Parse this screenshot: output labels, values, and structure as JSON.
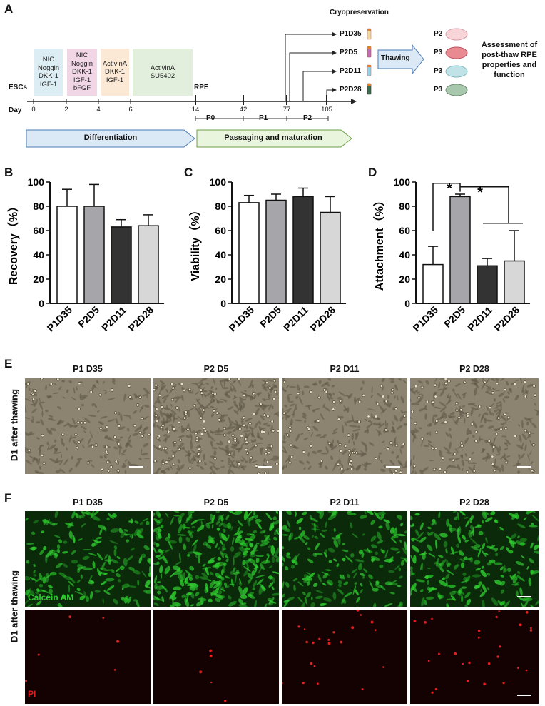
{
  "panel_labels": {
    "a": "A",
    "b": "B",
    "c": "C",
    "d": "D",
    "e": "E",
    "f": "F"
  },
  "schematic": {
    "escs": "ESCs",
    "rpe": "RPE",
    "day": "Day",
    "days": [
      "0",
      "2",
      "4",
      "6",
      "14",
      "42",
      "77",
      "105"
    ],
    "stages": [
      {
        "lines": [
          "NIC",
          "Noggin",
          "DKK-1",
          "IGF-1"
        ],
        "color": "#dcedf3"
      },
      {
        "lines": [
          "NIC",
          "Noggin",
          "DKK-1",
          "IGF-1",
          "bFGF"
        ],
        "color": "#f1d7e6"
      },
      {
        "lines": [
          "ActivinA",
          "DKK-1",
          "IGF-1"
        ],
        "color": "#fbe8d5"
      },
      {
        "lines": [
          "ActivinA",
          "SU5402"
        ],
        "color": "#e2efdc"
      }
    ],
    "passages": [
      "P0",
      "P1",
      "P2"
    ],
    "differentiation": "Differentiation",
    "passaging": "Passaging and maturation",
    "cryopreservation": "Cryopreservation",
    "cryo_points": [
      "P1D35",
      "P2D5",
      "P2D11",
      "P2D28"
    ],
    "thawing": "Thawing",
    "post_thaw_passages": [
      "P2",
      "P3",
      "P3",
      "P3"
    ],
    "assessment": [
      "Assessment of",
      "post-thaw  RPE",
      "properties and",
      "function"
    ]
  },
  "chart_data": [
    {
      "type": "bar",
      "categories": [
        "P1D35",
        "P2D5",
        "P2D11",
        "P2D28"
      ],
      "values": [
        80,
        80,
        63,
        64
      ],
      "errors": [
        14,
        18,
        6,
        9
      ],
      "ylabel": "Recovery（%）",
      "ylim": [
        0,
        100
      ],
      "yticks": [
        "0",
        "20",
        "40",
        "60",
        "80",
        "100"
      ],
      "colors": [
        "#ffffff",
        "#a6a6aa",
        "#333333",
        "#d7d7d7"
      ]
    },
    {
      "type": "bar",
      "categories": [
        "P1D35",
        "P2D5",
        "P2D11",
        "P2D28"
      ],
      "values": [
        83,
        85,
        88,
        75
      ],
      "errors": [
        6,
        5,
        7,
        13
      ],
      "ylabel": "Viability（%）",
      "ylim": [
        0,
        100
      ],
      "yticks": [
        "0",
        "20",
        "40",
        "60",
        "80",
        "100"
      ],
      "colors": [
        "#ffffff",
        "#a6a6aa",
        "#333333",
        "#d7d7d7"
      ]
    },
    {
      "type": "bar",
      "categories": [
        "P1D35",
        "P2D5",
        "P2D11",
        "P2D28"
      ],
      "values": [
        32,
        88,
        31,
        35
      ],
      "errors": [
        15,
        2,
        6,
        25
      ],
      "ylabel": "Attachment（%）",
      "ylim": [
        0,
        100
      ],
      "yticks": [
        "0",
        "20",
        "40",
        "60",
        "80",
        "100"
      ],
      "colors": [
        "#ffffff",
        "#a6a6aa",
        "#333333",
        "#d7d7d7"
      ],
      "significance": [
        "*",
        "*"
      ]
    }
  ],
  "panel_e": {
    "row_label": "D1 after thawing",
    "titles": [
      "P1 D35",
      "P2 D5",
      "P2 D11",
      "P2 D28"
    ],
    "density": [
      0.35,
      0.95,
      0.45,
      0.55
    ]
  },
  "panel_f": {
    "row_label": "D1 after thawing",
    "titles": [
      "P1 D35",
      "P2 D5",
      "P2 D11",
      "P2 D28"
    ],
    "calcein_label": "Calcein AM",
    "pi_label": "PI",
    "green_color": "#2ecc2e",
    "red_color": "#e02020"
  }
}
